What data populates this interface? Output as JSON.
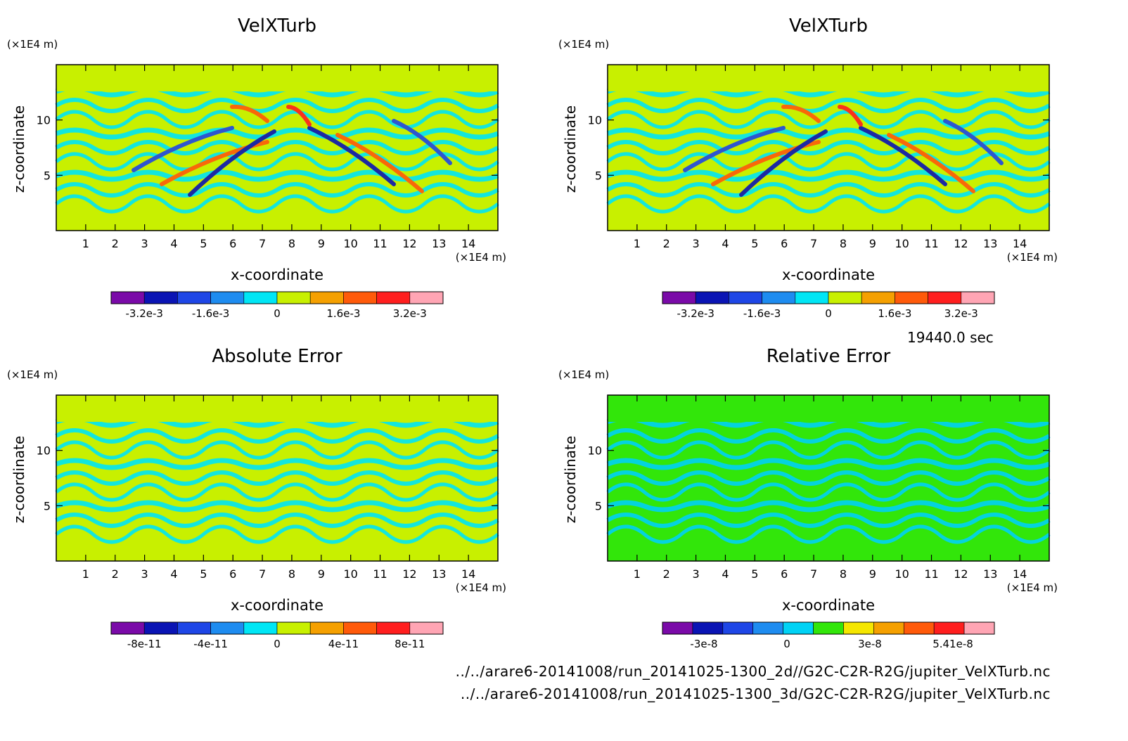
{
  "time_label": "19440.0 sec",
  "files": [
    "../../arare6-20141008/run_20141025-1300_2d//G2C-C2R-R2G/jupiter_VelXTurb.nc",
    "../../arare6-20141008/run_20141025-1300_3d/G2C-C2R-R2G/jupiter_VelXTurb.nc"
  ],
  "chart_data": [
    {
      "type": "heatmap",
      "title": "VelXTurb",
      "xlabel": "x-coordinate",
      "ylabel": "z-coordinate",
      "x_unit": "(×1E4 m)",
      "z_unit": "(×1E4 m)",
      "xlim": [
        0,
        15
      ],
      "ylim": [
        0,
        15
      ],
      "x_ticks": [
        "1",
        "2",
        "3",
        "4",
        "5",
        "6",
        "7",
        "8",
        "9",
        "10",
        "11",
        "12",
        "13",
        "14"
      ],
      "y_ticks": [
        "5",
        "10"
      ],
      "colorbar": {
        "colors": [
          "#7a0aa8",
          "#0a14b4",
          "#1e46e6",
          "#1e8cf0",
          "#00e6f5",
          "#c8f000",
          "#f5a000",
          "#ff5a0a",
          "#ff1e1e",
          "#ffa5b4"
        ],
        "tick_labels": [
          "-3.2e-3",
          "-1.6e-3",
          "0",
          "1.6e-3",
          "3.2e-3"
        ]
      },
      "background": "#c8f000"
    },
    {
      "type": "heatmap",
      "title": "VelXTurb",
      "xlabel": "x-coordinate",
      "ylabel": "z-coordinate",
      "x_unit": "(×1E4 m)",
      "z_unit": "(×1E4 m)",
      "xlim": [
        0,
        15
      ],
      "ylim": [
        0,
        15
      ],
      "x_ticks": [
        "1",
        "2",
        "3",
        "4",
        "5",
        "6",
        "7",
        "8",
        "9",
        "10",
        "11",
        "12",
        "13",
        "14"
      ],
      "y_ticks": [
        "5",
        "10"
      ],
      "colorbar": {
        "colors": [
          "#7a0aa8",
          "#0a14b4",
          "#1e46e6",
          "#1e8cf0",
          "#00e6f5",
          "#c8f000",
          "#f5a000",
          "#ff5a0a",
          "#ff1e1e",
          "#ffa5b4"
        ],
        "tick_labels": [
          "-3.2e-3",
          "-1.6e-3",
          "0",
          "1.6e-3",
          "3.2e-3"
        ]
      },
      "background": "#c8f000"
    },
    {
      "type": "heatmap",
      "title": "Absolute Error",
      "xlabel": "x-coordinate",
      "ylabel": "z-coordinate",
      "x_unit": "(×1E4 m)",
      "z_unit": "(×1E4 m)",
      "xlim": [
        0,
        15
      ],
      "ylim": [
        0,
        15
      ],
      "x_ticks": [
        "1",
        "2",
        "3",
        "4",
        "5",
        "6",
        "7",
        "8",
        "9",
        "10",
        "11",
        "12",
        "13",
        "14"
      ],
      "y_ticks": [
        "5",
        "10"
      ],
      "colorbar": {
        "colors": [
          "#7a0aa8",
          "#0a14b4",
          "#1e46e6",
          "#1e8cf0",
          "#00e6f5",
          "#c8f000",
          "#f5a000",
          "#ff5a0a",
          "#ff1e1e",
          "#ffa5b4"
        ],
        "tick_labels": [
          "-8e-11",
          "-4e-11",
          "0",
          "4e-11",
          "8e-11"
        ]
      },
      "background": "#c8f000"
    },
    {
      "type": "heatmap",
      "title": "Relative Error",
      "xlabel": "x-coordinate",
      "ylabel": "z-coordinate",
      "x_unit": "(×1E4 m)",
      "z_unit": "(×1E4 m)",
      "xlim": [
        0,
        15
      ],
      "ylim": [
        0,
        15
      ],
      "x_ticks": [
        "1",
        "2",
        "3",
        "4",
        "5",
        "6",
        "7",
        "8",
        "9",
        "10",
        "11",
        "12",
        "13",
        "14"
      ],
      "y_ticks": [
        "5",
        "10"
      ],
      "colorbar": {
        "colors": [
          "#7a0aa8",
          "#0a14b4",
          "#1e46e6",
          "#1e8cf0",
          "#00d2f5",
          "#32e60a",
          "#f5e600",
          "#f5a000",
          "#ff5a0a",
          "#ff1e1e",
          "#ffa5b4"
        ],
        "tick_labels": [
          "-3e-8",
          "0",
          "3e-8",
          "5.41e-8"
        ]
      },
      "background": "#32e60a"
    }
  ]
}
